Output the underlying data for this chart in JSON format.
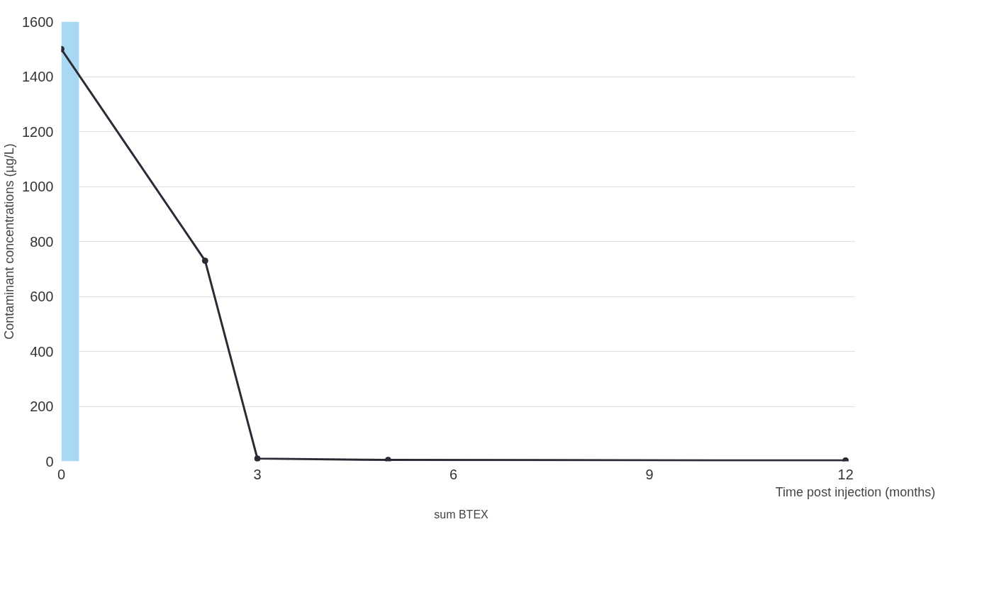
{
  "chart_data": {
    "type": "line",
    "xlabel": "Time post injection (months)",
    "ylabel": "Contaminant concentrations (µg/L)",
    "x": [
      0,
      2.2,
      3,
      5,
      12
    ],
    "series": [
      {
        "name": "sum BTEX",
        "color": "#2b2b36",
        "values": [
          1500,
          730,
          10,
          5,
          3
        ]
      }
    ],
    "xlim": [
      0,
      12.15
    ],
    "xticks": [
      0,
      3,
      6,
      9,
      12
    ],
    "ylim": [
      0,
      1600
    ],
    "yticks": [
      0,
      200,
      400,
      600,
      800,
      1000,
      1200,
      1400,
      1600
    ],
    "bands": [
      {
        "axis": "x",
        "from": 0,
        "to": 0.27,
        "color": "#a9d9f2"
      }
    ],
    "grid": "y",
    "legend": "bottom",
    "marker": "circle",
    "line_style": "solid"
  }
}
